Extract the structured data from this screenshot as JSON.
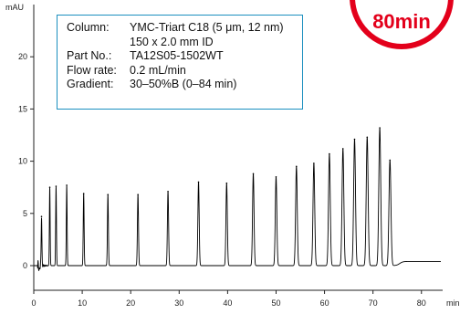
{
  "badge": {
    "value": "80",
    "unit": "min",
    "color": "#e3001b"
  },
  "conditions": [
    {
      "key": "Column:",
      "value": "YMC-Triart C18 (5 μm, 12 nm)"
    },
    {
      "key": "",
      "value": "150 x 2.0 mm ID"
    },
    {
      "key": "Part No.:",
      "value": "TA12S05-1502WT"
    },
    {
      "key": "Flow rate:",
      "value": "0.2 mL/min"
    },
    {
      "key": "Gradient:",
      "value": "30–50%B (0–84 min)"
    }
  ],
  "colors": {
    "box_border": "#1b8fbf",
    "trace": "#000000",
    "badge": "#e3001b"
  },
  "chart_data": {
    "type": "line",
    "title": "",
    "xlabel": "min",
    "ylabel": "mAU",
    "xlim": [
      0,
      84
    ],
    "ylim": [
      -1,
      25
    ],
    "x_ticks": [
      0,
      10,
      20,
      30,
      40,
      50,
      60,
      70,
      80
    ],
    "y_ticks": [
      0,
      5,
      10,
      15,
      20
    ],
    "grid": false,
    "baseline_before_elution": 0.0,
    "baseline_after_elution": 0.4,
    "peaks": [
      {
        "rt": 1.6,
        "height": 4.7
      },
      {
        "rt": 3.3,
        "height": 7.5
      },
      {
        "rt": 4.6,
        "height": 7.6
      },
      {
        "rt": 6.8,
        "height": 7.7
      },
      {
        "rt": 10.3,
        "height": 6.9
      },
      {
        "rt": 15.3,
        "height": 6.8
      },
      {
        "rt": 21.5,
        "height": 6.8
      },
      {
        "rt": 27.7,
        "height": 7.1
      },
      {
        "rt": 34.0,
        "height": 8.0
      },
      {
        "rt": 39.8,
        "height": 7.9
      },
      {
        "rt": 45.3,
        "height": 8.8
      },
      {
        "rt": 50.0,
        "height": 8.5
      },
      {
        "rt": 54.2,
        "height": 9.5
      },
      {
        "rt": 57.8,
        "height": 9.8
      },
      {
        "rt": 61.0,
        "height": 10.7
      },
      {
        "rt": 63.8,
        "height": 11.2
      },
      {
        "rt": 66.2,
        "height": 12.1
      },
      {
        "rt": 68.8,
        "height": 12.3
      },
      {
        "rt": 71.4,
        "height": 13.2
      },
      {
        "rt": 73.5,
        "height": 10.1
      }
    ]
  }
}
